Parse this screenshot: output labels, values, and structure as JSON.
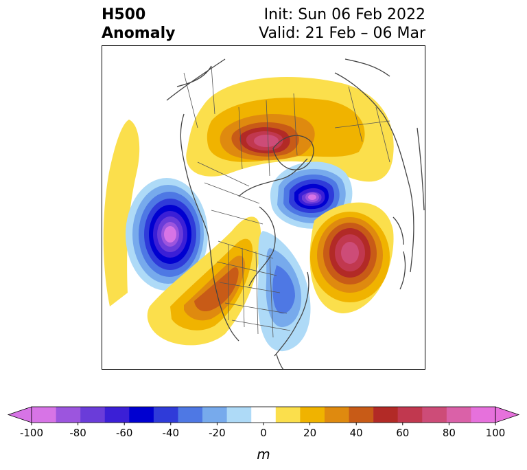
{
  "header": {
    "left_line1": "H500",
    "left_line2": "Anomaly",
    "right_line1": "Init: Sun 06 Feb 2022",
    "right_line2": "Valid: 21 Feb – 06 Mar"
  },
  "map": {
    "projection": "polar stereographic, North America / Arctic",
    "features": [
      "coastlines",
      "country borders",
      "US state boundaries",
      "Canadian provinces"
    ],
    "anomaly_centers": [
      {
        "region": "Arctic / Greenland",
        "sign": "positive",
        "peak": 80
      },
      {
        "region": "Siberia / Arctic Ocean",
        "sign": "negative",
        "peak": -100
      },
      {
        "region": "Northeast Pacific",
        "sign": "negative",
        "peak": -100
      },
      {
        "region": "Eastern Russia / Kamchatka",
        "sign": "positive",
        "peak": 80
      },
      {
        "region": "Western North America",
        "sign": "positive",
        "peak": 60
      },
      {
        "region": "Eastern North America",
        "sign": "negative",
        "peak": -50
      }
    ]
  },
  "colorbar": {
    "unit_label": "m",
    "ticks": [
      "-100",
      "-80",
      "-60",
      "-40",
      "-20",
      "0",
      "20",
      "40",
      "60",
      "80",
      "100"
    ],
    "levels": [
      -100,
      -90,
      -80,
      -70,
      -60,
      -50,
      -40,
      -30,
      -20,
      -10,
      10,
      20,
      30,
      40,
      50,
      60,
      70,
      80,
      90,
      100
    ],
    "colors": [
      "#d774e6",
      "#9c55de",
      "#6a3cd9",
      "#3b1fd6",
      "#0000d0",
      "#2f3bd9",
      "#4e78e4",
      "#77aaec",
      "#aedaf7",
      "#ffffff",
      "#fbdf4c",
      "#f0b300",
      "#df8a0f",
      "#c85b17",
      "#b22a26",
      "#c1384f",
      "#cd4c78",
      "#da61a8",
      "#e671dc"
    ],
    "under_color": "#d774e6",
    "over_color": "#e671dc"
  }
}
